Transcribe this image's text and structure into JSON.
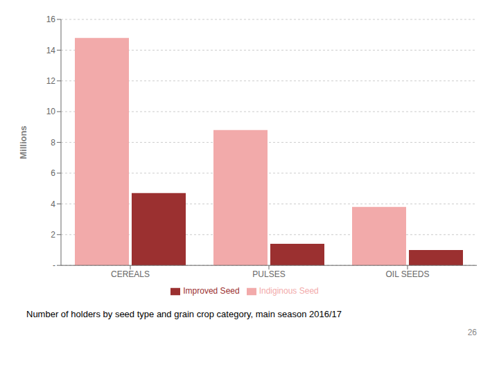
{
  "chart_data": {
    "type": "bar",
    "categories": [
      "CEREALS",
      "PULSES",
      "OIL SEEDS"
    ],
    "series": [
      {
        "name": "Indiginous Seed",
        "color": "#f2aaaa",
        "values": [
          14.8,
          8.8,
          3.8
        ]
      },
      {
        "name": "Improved Seed",
        "color": "#9b3030",
        "values": [
          4.7,
          1.4,
          1.0
        ]
      }
    ],
    "ylabel": "Millions",
    "ylim": [
      0,
      16
    ],
    "yticks": [
      {
        "value": 0,
        "label": "-"
      },
      2,
      4,
      6,
      8,
      10,
      12,
      14,
      16
    ],
    "grid": true,
    "legend": "bottom",
    "annotations": [
      "Number of holders by seed type and grain crop category, main season 2016/17",
      "26"
    ]
  }
}
